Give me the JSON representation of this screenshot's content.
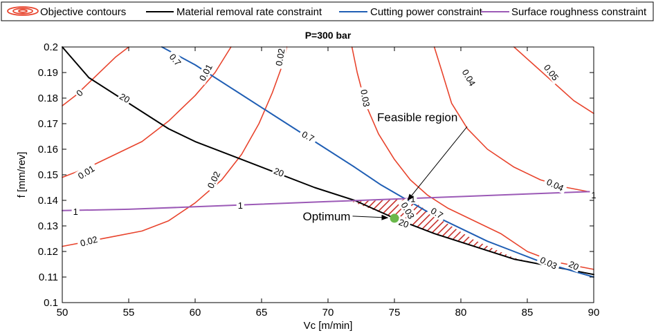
{
  "chart_data": {
    "type": "line",
    "title": "P=300 bar",
    "xlabel": "Vc [m/min]",
    "ylabel": "f [mm/rev]",
    "xlim": [
      50,
      90
    ],
    "ylim": [
      0.1,
      0.2
    ],
    "xticks": [
      "50",
      "55",
      "60",
      "65",
      "70",
      "75",
      "80",
      "85",
      "90"
    ],
    "yticks": [
      "0.1",
      "0.11",
      "0.12",
      "0.13",
      "0.14",
      "0.15",
      "0.16",
      "0.17",
      "0.18",
      "0.19",
      "0.2"
    ],
    "grid": false,
    "legend_position": "top",
    "legend": [
      {
        "label": "Objective contours",
        "color": "#e8432c",
        "symbol": "contour"
      },
      {
        "label": "Material removal rate constraint",
        "color": "#000000",
        "symbol": "line"
      },
      {
        "label": "Cutting power constraint",
        "color": "#1f5eb4",
        "symbol": "line"
      },
      {
        "label": "Surface roughness constraint",
        "color": "#9b59b6",
        "symbol": "line"
      }
    ],
    "series": [
      {
        "kind": "objective",
        "color": "#e8432c",
        "label": "0",
        "points": [
          [
            50,
            0.177
          ],
          [
            51,
            0.181
          ],
          [
            52,
            0.186
          ],
          [
            53,
            0.191
          ],
          [
            54,
            0.196
          ],
          [
            55,
            0.2
          ]
        ]
      },
      {
        "kind": "objective",
        "color": "#e8432c",
        "label": "0.01",
        "points": [
          [
            50,
            0.149
          ],
          [
            52,
            0.153
          ],
          [
            54,
            0.158
          ],
          [
            56,
            0.163
          ],
          [
            58,
            0.171
          ],
          [
            60,
            0.181
          ],
          [
            61.5,
            0.19
          ],
          [
            62.7,
            0.2
          ]
        ]
      },
      {
        "kind": "objective",
        "color": "#e8432c",
        "label": "0.02",
        "points": [
          [
            50,
            0.122
          ],
          [
            52,
            0.124
          ],
          [
            54,
            0.126
          ],
          [
            56,
            0.128
          ],
          [
            58,
            0.132
          ],
          [
            60,
            0.139
          ],
          [
            62,
            0.148
          ],
          [
            63.5,
            0.158
          ],
          [
            64.8,
            0.17
          ],
          [
            65.8,
            0.182
          ],
          [
            66.5,
            0.192
          ],
          [
            66.9,
            0.2
          ]
        ]
      },
      {
        "kind": "objective",
        "color": "#e8432c",
        "label": "0.03",
        "points": [
          [
            71.8,
            0.2
          ],
          [
            72.2,
            0.19
          ],
          [
            72.8,
            0.178
          ],
          [
            73.8,
            0.166
          ],
          [
            75,
            0.156
          ],
          [
            76.2,
            0.148
          ],
          [
            77.5,
            0.142
          ],
          [
            79,
            0.137
          ],
          [
            81,
            0.132
          ],
          [
            83,
            0.127
          ],
          [
            85,
            0.12
          ],
          [
            87,
            0.116
          ],
          [
            90,
            0.113
          ]
        ]
      },
      {
        "kind": "objective",
        "color": "#e8432c",
        "label": "0.04",
        "points": [
          [
            78,
            0.2
          ],
          [
            78.6,
            0.19
          ],
          [
            79.3,
            0.178
          ],
          [
            80.5,
            0.168
          ],
          [
            82,
            0.16
          ],
          [
            84,
            0.153
          ],
          [
            86,
            0.148
          ],
          [
            88,
            0.145
          ],
          [
            90,
            0.143
          ]
        ]
      },
      {
        "kind": "objective",
        "color": "#e8432c",
        "label": "0.05",
        "points": [
          [
            84,
            0.2
          ],
          [
            85.5,
            0.193
          ],
          [
            87,
            0.186
          ],
          [
            88.5,
            0.179
          ],
          [
            90,
            0.174
          ]
        ]
      },
      {
        "kind": "mrr",
        "color": "#000000",
        "label": "20",
        "points": [
          [
            50,
            0.2
          ],
          [
            52,
            0.188
          ],
          [
            55,
            0.178
          ],
          [
            58,
            0.168
          ],
          [
            60,
            0.163
          ],
          [
            63,
            0.157
          ],
          [
            66,
            0.151
          ],
          [
            69,
            0.145
          ],
          [
            72,
            0.14
          ],
          [
            75,
            0.133
          ],
          [
            78,
            0.127
          ],
          [
            81,
            0.122
          ],
          [
            84,
            0.117
          ],
          [
            87,
            0.114
          ],
          [
            90,
            0.111
          ]
        ]
      },
      {
        "kind": "power",
        "color": "#1f5eb4",
        "label": "0.7",
        "points": [
          [
            57.5,
            0.2
          ],
          [
            60,
            0.193
          ],
          [
            63,
            0.183
          ],
          [
            66,
            0.173
          ],
          [
            69,
            0.163
          ],
          [
            72,
            0.153
          ],
          [
            74,
            0.146
          ],
          [
            76,
            0.14
          ],
          [
            78,
            0.134
          ],
          [
            80,
            0.129
          ],
          [
            82,
            0.124
          ],
          [
            84,
            0.12
          ],
          [
            86,
            0.116
          ],
          [
            88,
            0.113
          ],
          [
            90,
            0.11
          ]
        ]
      },
      {
        "kind": "roughness",
        "color": "#9b59b6",
        "label": "1",
        "points": [
          [
            50,
            0.136
          ],
          [
            55,
            0.1365
          ],
          [
            60,
            0.1375
          ],
          [
            65,
            0.1385
          ],
          [
            70,
            0.1395
          ],
          [
            75,
            0.1405
          ],
          [
            80,
            0.1415
          ],
          [
            85,
            0.1425
          ],
          [
            90,
            0.1435
          ]
        ]
      }
    ],
    "contour_labels": [
      {
        "text": "0.7",
        "x": 58.5,
        "y": 0.195,
        "rotate": 50
      },
      {
        "text": "0.01",
        "x": 60.8,
        "y": 0.19,
        "rotate": -62
      },
      {
        "text": "0.02",
        "x": 66.4,
        "y": 0.196,
        "rotate": -80
      },
      {
        "text": "0.03",
        "x": 72.8,
        "y": 0.18,
        "rotate": 80
      },
      {
        "text": "0.04",
        "x": 80.6,
        "y": 0.188,
        "rotate": 60
      },
      {
        "text": "0.05",
        "x": 86.8,
        "y": 0.19,
        "rotate": 52
      },
      {
        "text": "0",
        "x": 51.3,
        "y": 0.182,
        "rotate": -45
      },
      {
        "text": "20",
        "x": 54.7,
        "y": 0.18,
        "rotate": 30
      },
      {
        "text": "0.7",
        "x": 68.5,
        "y": 0.165,
        "rotate": 28
      },
      {
        "text": "20",
        "x": 66.3,
        "y": 0.151,
        "rotate": 22
      },
      {
        "text": "0.01",
        "x": 51.8,
        "y": 0.151,
        "rotate": -32
      },
      {
        "text": "0.02",
        "x": 61.4,
        "y": 0.148,
        "rotate": -64
      },
      {
        "text": "0.04",
        "x": 87.1,
        "y": 0.146,
        "rotate": 25
      },
      {
        "text": "1",
        "x": 90.0,
        "y": 0.142,
        "rotate": 0
      },
      {
        "text": "1",
        "x": 51.0,
        "y": 0.1355,
        "rotate": 0
      },
      {
        "text": "1",
        "x": 63.4,
        "y": 0.138,
        "rotate": 0
      },
      {
        "text": "0.02",
        "x": 52.0,
        "y": 0.124,
        "rotate": -15
      },
      {
        "text": "1",
        "x": 76.4,
        "y": 0.1405,
        "rotate": 0
      },
      {
        "text": "0.03",
        "x": 76.0,
        "y": 0.136,
        "rotate": 60
      },
      {
        "text": "0.7",
        "x": 78.2,
        "y": 0.135,
        "rotate": 32
      },
      {
        "text": "20",
        "x": 75.7,
        "y": 0.131,
        "rotate": 20
      },
      {
        "text": "0.03",
        "x": 86.6,
        "y": 0.1155,
        "rotate": 25
      },
      {
        "text": "20",
        "x": 88.5,
        "y": 0.1145,
        "rotate": 25
      }
    ],
    "feasible_region": [
      [
        71.8,
        0.1395
      ],
      [
        76.2,
        0.1405
      ],
      [
        78,
        0.134
      ],
      [
        81,
        0.1245
      ],
      [
        84,
        0.1175
      ],
      [
        86.5,
        0.1145
      ],
      [
        84,
        0.117
      ],
      [
        81,
        0.122
      ],
      [
        78,
        0.127
      ],
      [
        75,
        0.133
      ]
    ],
    "optimum": {
      "x": 75.0,
      "y": 0.133,
      "color": "#6ab84a"
    },
    "annotations": {
      "feasible_region": {
        "text": "Feasible region",
        "text_x": 73.7,
        "text_y": 0.171,
        "target_x": 76.0,
        "target_y": 0.14
      },
      "optimum": {
        "text": "Optimum",
        "text_x": 68.1,
        "text_y": 0.1322,
        "target_x": 74.5,
        "target_y": 0.1332
      }
    }
  }
}
